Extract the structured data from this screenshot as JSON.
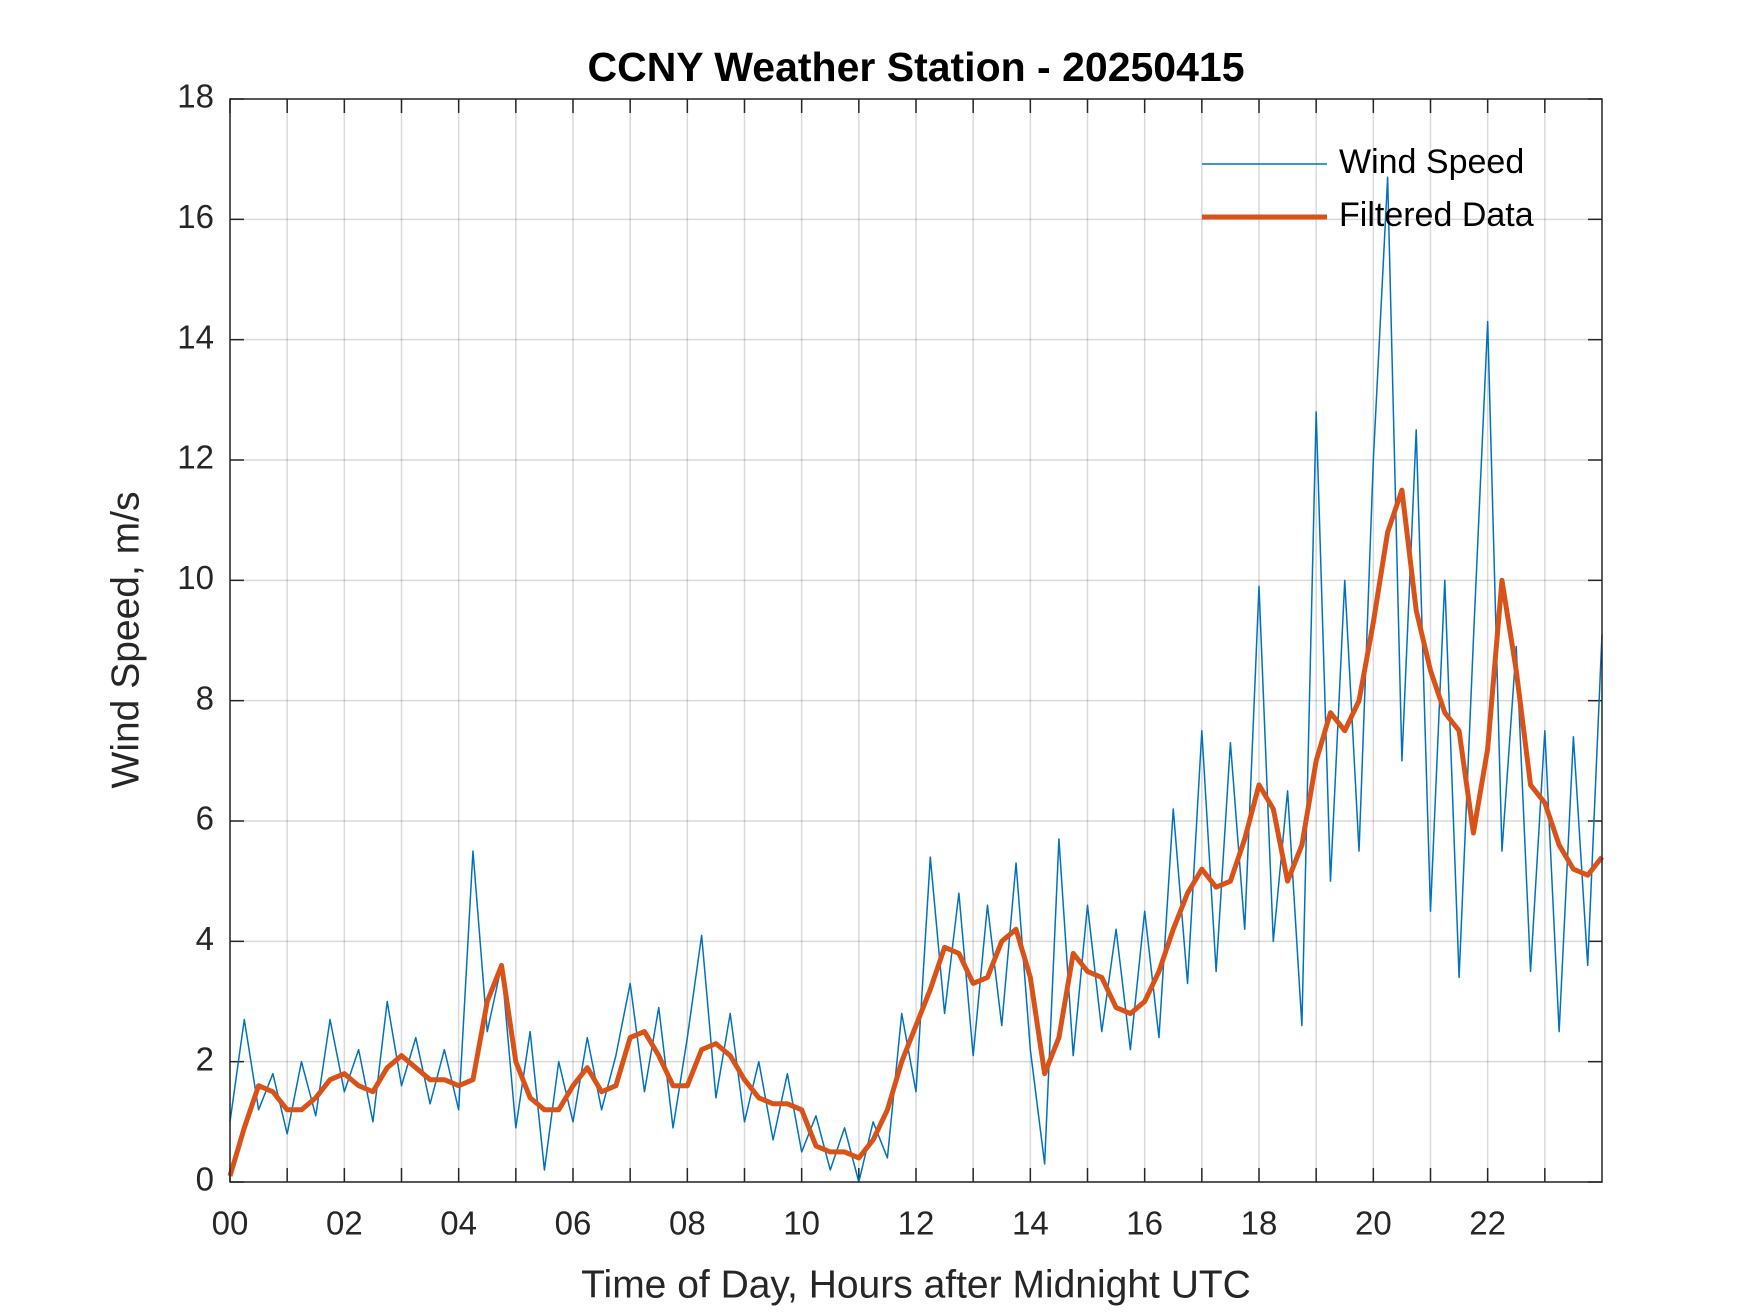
{
  "chart_data": {
    "type": "line",
    "title": "CCNY Weather Station - 20250415",
    "xlabel": "Time of Day, Hours after Midnight UTC",
    "ylabel": "Wind Speed, m/s",
    "x": [
      0,
      0.25,
      0.5,
      0.75,
      1,
      1.25,
      1.5,
      1.75,
      2,
      2.25,
      2.5,
      2.75,
      3,
      3.25,
      3.5,
      3.75,
      4,
      4.25,
      4.5,
      4.75,
      5,
      5.25,
      5.5,
      5.75,
      6,
      6.25,
      6.5,
      6.75,
      7,
      7.25,
      7.5,
      7.75,
      8,
      8.25,
      8.5,
      8.75,
      9,
      9.25,
      9.5,
      9.75,
      10,
      10.25,
      10.5,
      10.75,
      11,
      11.25,
      11.5,
      11.75,
      12,
      12.25,
      12.5,
      12.75,
      13,
      13.25,
      13.5,
      13.75,
      14,
      14.25,
      14.5,
      14.75,
      15,
      15.25,
      15.5,
      15.75,
      16,
      16.25,
      16.5,
      16.75,
      17,
      17.25,
      17.5,
      17.75,
      18,
      18.25,
      18.5,
      18.75,
      19,
      19.25,
      19.5,
      19.75,
      20,
      20.25,
      20.5,
      20.75,
      21,
      21.25,
      21.5,
      21.75,
      22,
      22.25,
      22.5,
      22.75,
      23,
      23.25,
      23.5,
      23.75,
      24
    ],
    "series": [
      {
        "name": "Wind Speed",
        "color": "#0072bd",
        "width": 1.5,
        "values": [
          1.0,
          2.7,
          1.2,
          1.8,
          0.8,
          2.0,
          1.1,
          2.7,
          1.5,
          2.2,
          1.0,
          3.0,
          1.6,
          2.4,
          1.3,
          2.2,
          1.2,
          5.5,
          2.5,
          3.6,
          0.9,
          2.5,
          0.2,
          2.0,
          1.0,
          2.4,
          1.2,
          2.1,
          3.3,
          1.5,
          2.9,
          0.9,
          2.4,
          4.1,
          1.4,
          2.8,
          1.0,
          2.0,
          0.7,
          1.8,
          0.5,
          1.1,
          0.2,
          0.9,
          0.0,
          1.0,
          0.4,
          2.8,
          1.5,
          5.4,
          2.8,
          4.8,
          2.1,
          4.6,
          2.6,
          5.3,
          2.2,
          0.3,
          5.7,
          2.1,
          4.6,
          2.5,
          4.2,
          2.2,
          4.5,
          2.4,
          6.2,
          3.3,
          7.5,
          3.5,
          7.3,
          4.2,
          9.9,
          4.0,
          6.5,
          2.6,
          12.8,
          5.0,
          10.0,
          5.5,
          12.0,
          16.7,
          7.0,
          12.5,
          4.5,
          10.0,
          3.4,
          9.0,
          14.3,
          5.5,
          8.9,
          3.5,
          7.5,
          2.5,
          7.4,
          3.6,
          9.1
        ]
      },
      {
        "name": "Filtered Data",
        "color": "#d95319",
        "width": 5,
        "values": [
          0.1,
          0.9,
          1.6,
          1.5,
          1.2,
          1.2,
          1.4,
          1.7,
          1.8,
          1.6,
          1.5,
          1.9,
          2.1,
          1.9,
          1.7,
          1.7,
          1.6,
          1.7,
          3.0,
          3.6,
          2.0,
          1.4,
          1.2,
          1.2,
          1.6,
          1.9,
          1.5,
          1.6,
          2.4,
          2.5,
          2.1,
          1.6,
          1.6,
          2.2,
          2.3,
          2.1,
          1.7,
          1.4,
          1.3,
          1.3,
          1.2,
          0.6,
          0.5,
          0.5,
          0.4,
          0.7,
          1.2,
          2.0,
          2.6,
          3.2,
          3.9,
          3.8,
          3.3,
          3.4,
          4.0,
          4.2,
          3.4,
          1.8,
          2.4,
          3.8,
          3.5,
          3.4,
          2.9,
          2.8,
          3.0,
          3.5,
          4.2,
          4.8,
          5.2,
          4.9,
          5.0,
          5.7,
          6.6,
          6.2,
          5.0,
          5.6,
          7.0,
          7.8,
          7.5,
          8.0,
          9.3,
          10.8,
          11.5,
          9.5,
          8.5,
          7.8,
          7.5,
          5.8,
          7.2,
          10.0,
          8.5,
          6.6,
          6.3,
          5.6,
          5.2,
          5.1,
          5.4
        ]
      }
    ],
    "xlim": [
      0,
      24
    ],
    "xticks": [
      {
        "value": 0,
        "label": "00"
      },
      {
        "value": 2,
        "label": "02"
      },
      {
        "value": 4,
        "label": "04"
      },
      {
        "value": 6,
        "label": "06"
      },
      {
        "value": 8,
        "label": "08"
      },
      {
        "value": 10,
        "label": "10"
      },
      {
        "value": 12,
        "label": "12"
      },
      {
        "value": 14,
        "label": "14"
      },
      {
        "value": 16,
        "label": "16"
      },
      {
        "value": 18,
        "label": "18"
      },
      {
        "value": 20,
        "label": "20"
      },
      {
        "value": 22,
        "label": "22"
      }
    ],
    "x_minor_ticks": [
      1,
      3,
      5,
      7,
      9,
      11,
      13,
      15,
      17,
      19,
      21,
      23
    ],
    "ylim": [
      0,
      18
    ],
    "yticks": [
      0,
      2,
      4,
      6,
      8,
      10,
      12,
      14,
      16,
      18
    ],
    "grid": true,
    "legend": "northeast"
  }
}
